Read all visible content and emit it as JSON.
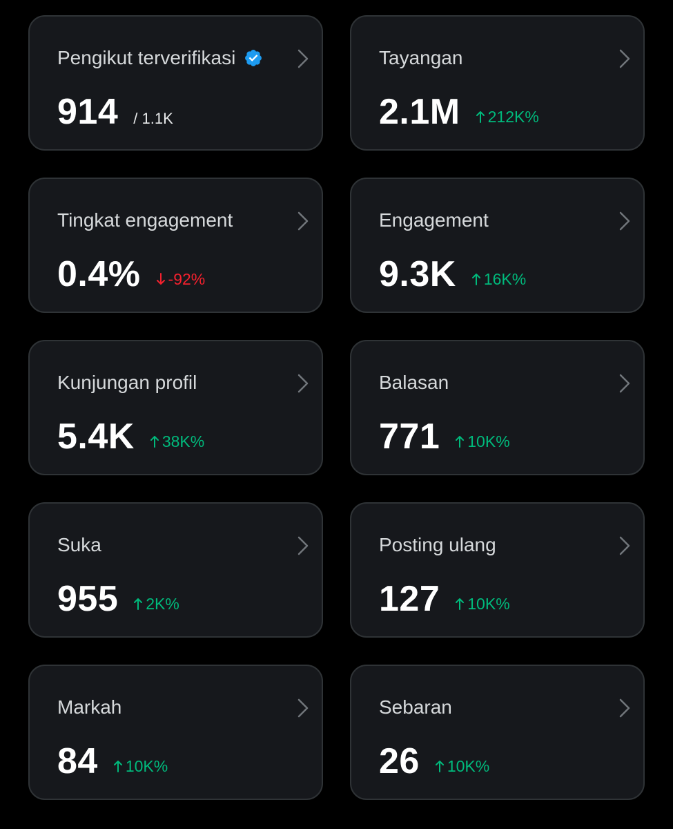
{
  "colors": {
    "background": "#000000",
    "card_background": "#16181c",
    "card_border": "#2f3336",
    "positive": "#00ba7c",
    "negative": "#f4212e",
    "verified_badge": "#1d9bf0"
  },
  "cards": [
    {
      "title": "Pengikut terverifikasi",
      "value": "914",
      "sub_value": "/ 1.1K",
      "verified_icon": "verified-badge-icon",
      "icon": "chevron-right-icon"
    },
    {
      "title": "Tayangan",
      "value": "2.1M",
      "change": "212K%",
      "direction": "up",
      "icon": "chevron-right-icon"
    },
    {
      "title": "Tingkat engagement",
      "value": "0.4%",
      "change": "-92%",
      "direction": "down",
      "icon": "chevron-right-icon"
    },
    {
      "title": "Engagement",
      "value": "9.3K",
      "change": "16K%",
      "direction": "up",
      "icon": "chevron-right-icon"
    },
    {
      "title": "Kunjungan profil",
      "value": "5.4K",
      "change": "38K%",
      "direction": "up",
      "icon": "chevron-right-icon"
    },
    {
      "title": "Balasan",
      "value": "771",
      "change": "10K%",
      "direction": "up",
      "icon": "chevron-right-icon"
    },
    {
      "title": "Suka",
      "value": "955",
      "change": "2K%",
      "direction": "up",
      "icon": "chevron-right-icon"
    },
    {
      "title": "Posting ulang",
      "value": "127",
      "change": "10K%",
      "direction": "up",
      "icon": "chevron-right-icon"
    },
    {
      "title": "Markah",
      "value": "84",
      "change": "10K%",
      "direction": "up",
      "icon": "chevron-right-icon"
    },
    {
      "title": "Sebaran",
      "value": "26",
      "change": "10K%",
      "direction": "up",
      "icon": "chevron-right-icon"
    }
  ]
}
